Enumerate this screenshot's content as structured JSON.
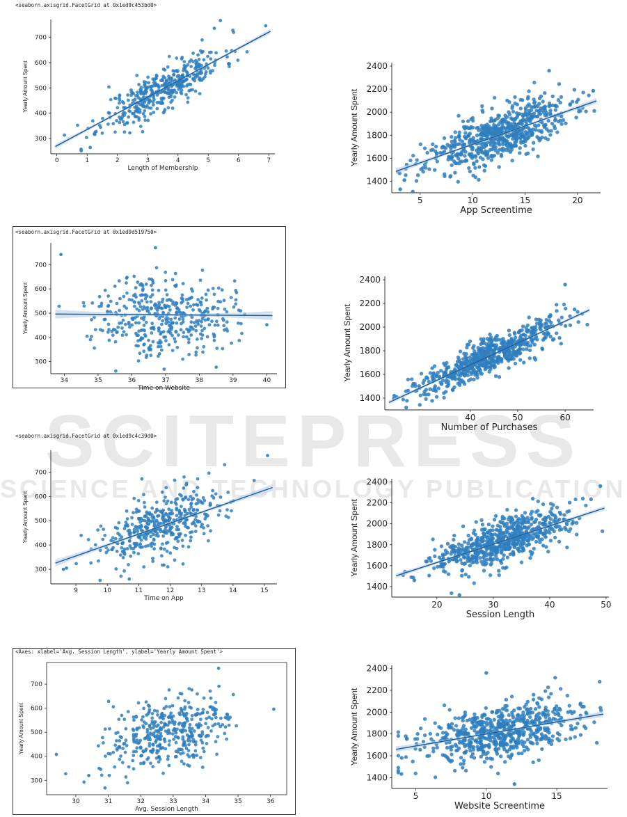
{
  "captions": [
    "<seaborn.axisgrid.FacetGrid at 0x1ed9c453bd0>",
    "<seaborn.axisgrid.FacetGrid at 0x1ed9d519750>",
    "<seaborn.axisgrid.FacetGrid at 0x1ed9c4c39d0>",
    "<Axes: xlabel='Avg. Session Length', ylabel='Yearly Amount Spent'>"
  ],
  "watermark": {
    "main": "SCITEPRESS",
    "sub": "SCIENCE AND TECHNOLOGY PUBLICATIONS"
  },
  "colors": {
    "point": "#2f7fbf",
    "line": "#1f5f9a",
    "band": "#aec8e6"
  },
  "chart_data": [
    {
      "id": "membership",
      "type": "scatter",
      "xlabel": "Length of Membership",
      "ylabel": "Yearly Amount Spent",
      "xlim": [
        -0.2,
        7.2
      ],
      "ylim": [
        240,
        770
      ],
      "xticks": [
        0,
        1,
        2,
        3,
        4,
        5,
        6,
        7
      ],
      "yticks": [
        300,
        400,
        500,
        600,
        700
      ],
      "regression": true,
      "fit": [
        272,
        64
      ],
      "sd": [
        1.0,
        3.5
      ],
      "spread": 42,
      "n": 420,
      "seed": 11,
      "outliers": [
        [
          0.25,
          314
        ],
        [
          0.8,
          258
        ],
        [
          1.1,
          265
        ],
        [
          6.9,
          745
        ],
        [
          5.4,
          766
        ],
        [
          5.2,
          735
        ]
      ]
    },
    {
      "id": "app_screentime",
      "type": "scatter",
      "xlabel": "App Screentime",
      "ylabel": "Yearly Amount Spent",
      "xlim": [
        2.3,
        22.2
      ],
      "ylim": [
        1300,
        2430
      ],
      "xticks": [
        5,
        10,
        15,
        20
      ],
      "yticks": [
        1400,
        1600,
        1800,
        2000,
        2200,
        2400
      ],
      "regression": true,
      "fit": [
        1400,
        32
      ],
      "sd": [
        3.4,
        12.5
      ],
      "spread": 110,
      "n": 650,
      "seed": 23,
      "outliers": [
        [
          3.1,
          1330
        ],
        [
          4.3,
          1310
        ],
        [
          17.3,
          2360
        ],
        [
          21.5,
          2185
        ],
        [
          3.5,
          1410
        ]
      ]
    },
    {
      "id": "website",
      "type": "scatter",
      "xlabel": "Time on Website",
      "ylabel": "Yearly Amount Spent",
      "xlim": [
        33.6,
        40.3
      ],
      "ylim": [
        250,
        790
      ],
      "xticks": [
        34,
        35,
        36,
        37,
        38,
        39,
        40
      ],
      "yticks": [
        300,
        400,
        500,
        600,
        700
      ],
      "regression": true,
      "fit": [
        530,
        -1
      ],
      "sd": [
        1.0,
        37.0
      ],
      "spread": 80,
      "n": 420,
      "seed": 37,
      "outliers": [
        [
          33.9,
          742
        ],
        [
          36.7,
          770
        ],
        [
          40.0,
          452
        ],
        [
          38.5,
          277
        ],
        [
          39.1,
          585
        ]
      ]
    },
    {
      "id": "purchases",
      "type": "scatter",
      "xlabel": "Number of Purchases",
      "ylabel": "Yearly Amount Spent",
      "xlim": [
        22,
        66
      ],
      "ylim": [
        1300,
        2430
      ],
      "xticks": [
        40,
        50,
        60
      ],
      "yticks": [
        1400,
        1600,
        1800,
        2000,
        2200,
        2400
      ],
      "regression": true,
      "fit": [
        940,
        18.5
      ],
      "sd": [
        7.5,
        45.0
      ],
      "spread": 75,
      "n": 650,
      "seed": 41,
      "outliers": [
        [
          24,
          1420
        ],
        [
          26.5,
          1320
        ],
        [
          60,
          2360
        ],
        [
          62,
          2150
        ],
        [
          28,
          1520
        ]
      ]
    },
    {
      "id": "app",
      "type": "scatter",
      "xlabel": "Time on App",
      "ylabel": "Yearly Amount Spent",
      "xlim": [
        8.2,
        15.4
      ],
      "ylim": [
        240,
        790
      ],
      "xticks": [
        9,
        10,
        11,
        12,
        13,
        14,
        15
      ],
      "yticks": [
        300,
        400,
        500,
        600,
        700
      ],
      "regression": true,
      "fit": [
        -50,
        45
      ],
      "sd": [
        1.05,
        12.0
      ],
      "spread": 62,
      "n": 420,
      "seed": 53,
      "outliers": [
        [
          8.6,
          300
        ],
        [
          8.7,
          305
        ],
        [
          15.1,
          768
        ],
        [
          10.7,
          260
        ],
        [
          11.1,
          672
        ]
      ]
    },
    {
      "id": "session_length",
      "type": "scatter",
      "xlabel": "Session Length",
      "ylabel": "Yearly Amount Spent",
      "xlim": [
        12,
        50.5
      ],
      "ylim": [
        1300,
        2430
      ],
      "xticks": [
        20,
        30,
        40,
        50
      ],
      "yticks": [
        1400,
        1600,
        1800,
        2000,
        2200,
        2400
      ],
      "regression": true,
      "fit": [
        1280,
        17.5
      ],
      "sd": [
        5.8,
        30.0
      ],
      "spread": 100,
      "n": 650,
      "seed": 67,
      "outliers": [
        [
          49,
          2360
        ],
        [
          14,
          1510
        ],
        [
          16,
          1460
        ],
        [
          24,
          1320
        ],
        [
          37,
          2240
        ]
      ]
    },
    {
      "id": "avg_session",
      "type": "scatter",
      "xlabel": "Avg. Session Length",
      "ylabel": "Yearly Amount Spent",
      "xlim": [
        29.1,
        36.5
      ],
      "ylim": [
        240,
        790
      ],
      "xticks": [
        30,
        31,
        32,
        33,
        34,
        35,
        36
      ],
      "yticks": [
        300,
        400,
        500,
        600,
        700
      ],
      "regression": false,
      "fit": [
        -580,
        33
      ],
      "sd": [
        1.0,
        28.0
      ],
      "spread": 70,
      "n": 420,
      "seed": 79,
      "outliers": [
        [
          29.4,
          408
        ],
        [
          30.4,
          320
        ],
        [
          30.9,
          268
        ],
        [
          36.1,
          596
        ],
        [
          34.4,
          766
        ]
      ]
    },
    {
      "id": "website_screentime",
      "type": "scatter",
      "xlabel": "Website Screentime",
      "ylabel": "Yearly Amount Spent",
      "xlim": [
        3.3,
        18.6
      ],
      "ylim": [
        1300,
        2430
      ],
      "xticks": [
        5,
        10,
        15
      ],
      "yticks": [
        1400,
        1600,
        1800,
        2000,
        2200,
        2400
      ],
      "regression": true,
      "fit": [
        1580,
        22
      ],
      "sd": [
        2.9,
        11.0
      ],
      "spread": 120,
      "n": 650,
      "seed": 83,
      "outliers": [
        [
          10,
          2360
        ],
        [
          18.1,
          2040
        ],
        [
          4,
          1580
        ],
        [
          12,
          1340
        ]
      ]
    }
  ]
}
